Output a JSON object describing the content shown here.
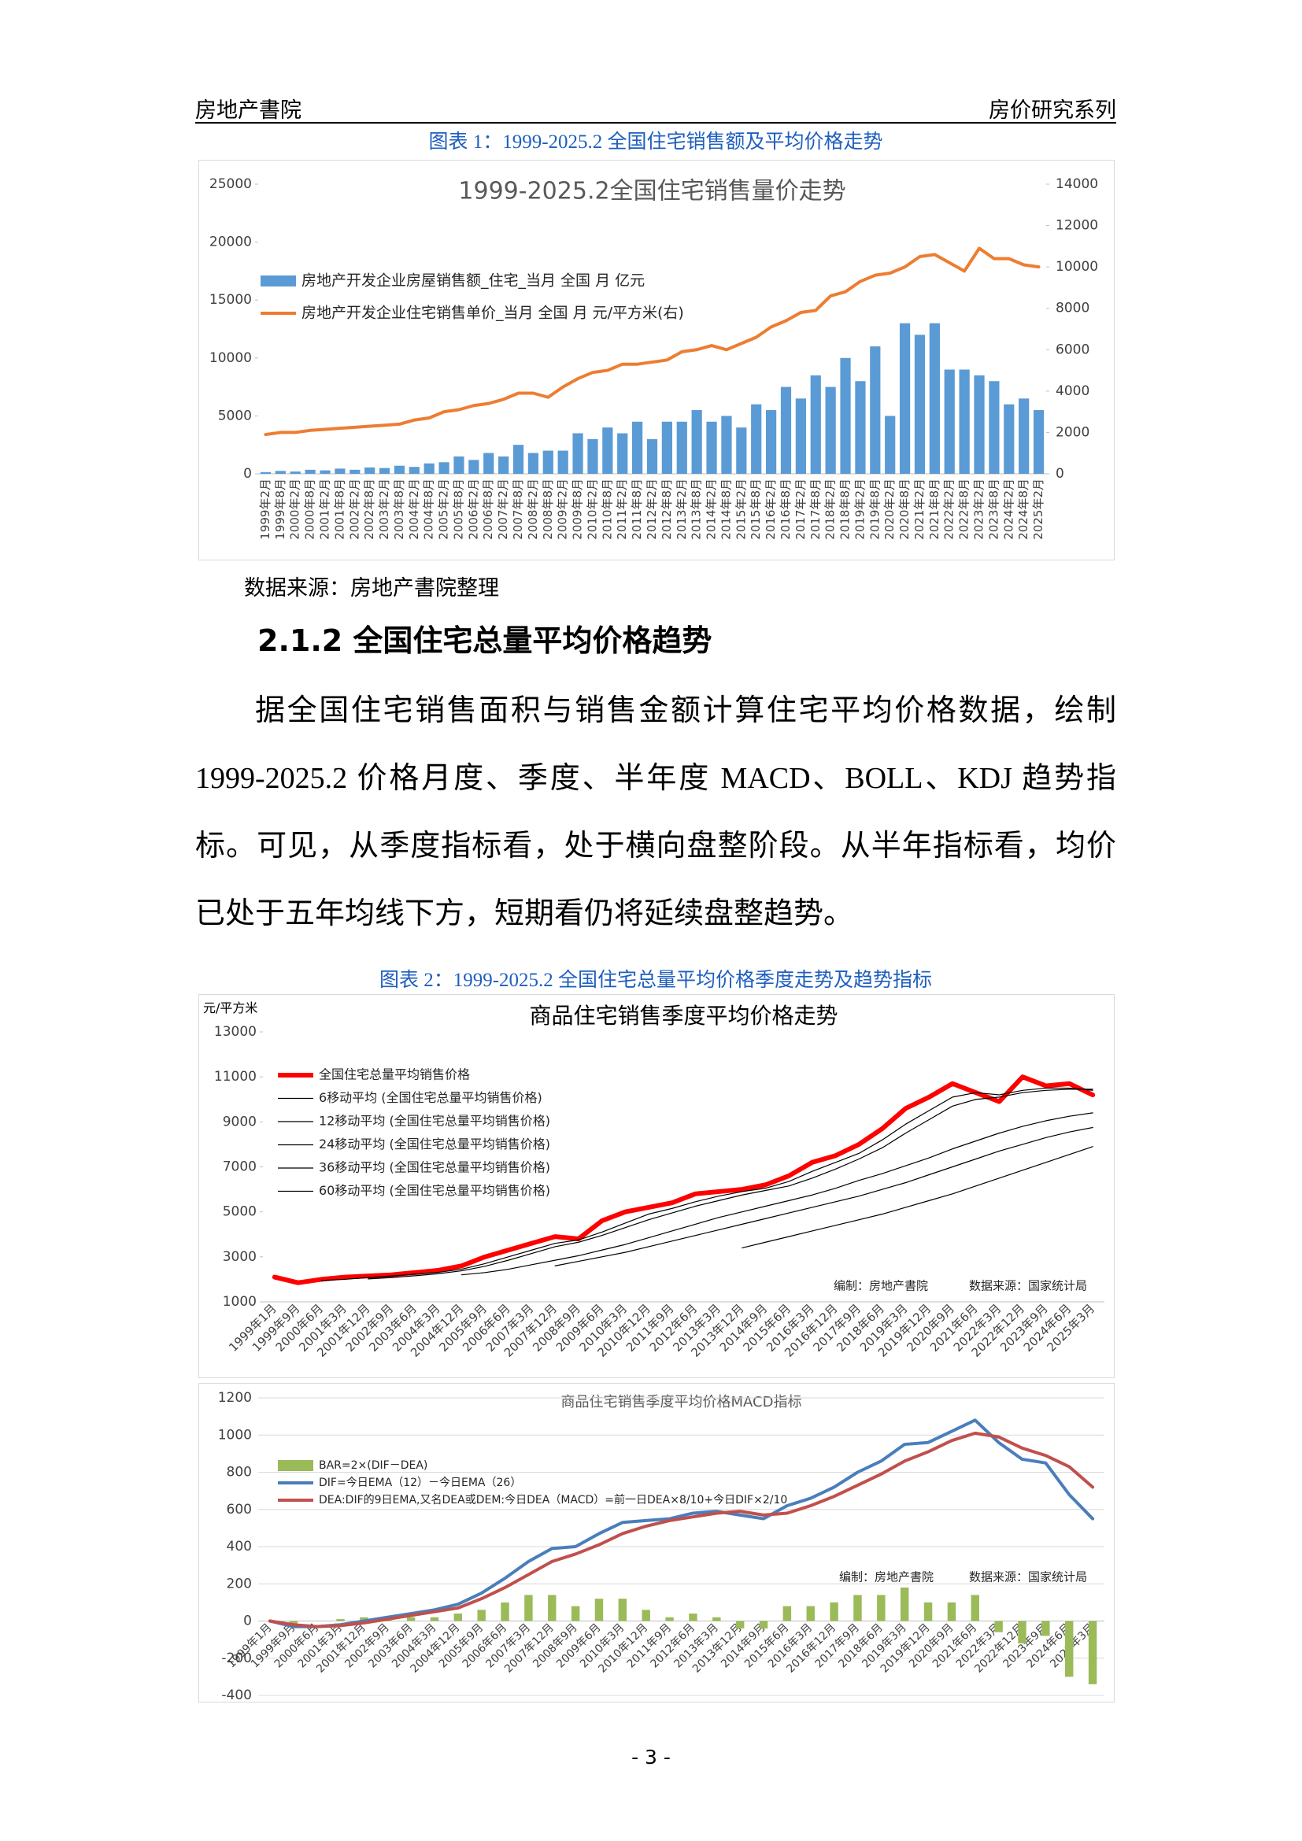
{
  "header": {
    "left": "房地产書院",
    "right": "房价研究系列"
  },
  "captions": [
    "图表 1：1999-2025.2 全国住宅销售额及平均价格走势",
    "图表 2：1999-2025.2 全国住宅总量平均价格季度走势及趋势指标"
  ],
  "source": "数据来源：房地产書院整理",
  "section_heading": "2.1.2 全国住宅总量平均价格趋势",
  "paragraph": "据全国住宅销售面积与销售金额计算住宅平均价格数据，绘制1999-2025.2 价格月度、季度、半年度 MACD、BOLL、KDJ 趋势指标。可见，从季度指标看，处于横向盘整阶段。从半年指标看，均价已处于五年均线下方，短期看仍将延续盘整趋势。",
  "page_number": "- 3 -",
  "chart_data": [
    {
      "type": "bar_line",
      "title": "1999-2025.2全国住宅销售量价走势",
      "categories": [
        "1999年2月",
        "1999年8月",
        "2000年2月",
        "2000年8月",
        "2001年2月",
        "2001年8月",
        "2002年2月",
        "2002年8月",
        "2003年2月",
        "2003年8月",
        "2004年2月",
        "2004年8月",
        "2005年2月",
        "2005年8月",
        "2006年2月",
        "2006年8月",
        "2007年2月",
        "2007年8月",
        "2008年2月",
        "2008年8月",
        "2009年2月",
        "2009年8月",
        "2010年2月",
        "2010年8月",
        "2011年2月",
        "2011年8月",
        "2012年2月",
        "2012年8月",
        "2013年2月",
        "2013年8月",
        "2014年2月",
        "2014年8月",
        "2015年2月",
        "2015年8月",
        "2016年2月",
        "2016年8月",
        "2017年2月",
        "2017年8月",
        "2018年2月",
        "2018年8月",
        "2019年2月",
        "2019年8月",
        "2020年2月",
        "2020年8月",
        "2021年2月",
        "2021年8月",
        "2022年2月",
        "2022年8月",
        "2023年2月",
        "2023年8月",
        "2024年2月",
        "2024年8月",
        "2025年2月"
      ],
      "series": [
        {
          "name": "房地产开发企业房屋销售额_住宅_当月 全国 月 亿元",
          "type": "bar",
          "color": "#5b9bd5",
          "values": [
            150,
            250,
            200,
            350,
            300,
            450,
            350,
            550,
            500,
            700,
            600,
            900,
            1000,
            1500,
            1200,
            1800,
            1500,
            2500,
            1800,
            2000,
            2000,
            3500,
            3000,
            4000,
            3500,
            4500,
            3000,
            4500,
            4500,
            5500,
            4500,
            5000,
            4000,
            6000,
            5500,
            7500,
            6500,
            8500,
            7500,
            10000,
            8000,
            11000,
            5000,
            13000,
            12000,
            13000,
            9000,
            9000,
            8500,
            8000,
            6000,
            6500,
            5500
          ]
        },
        {
          "name": "房地产开发企业住宅销售单价_当月 全国 月 元/平方米(右)",
          "type": "line",
          "axis": "y2",
          "color": "#ed7d31",
          "values": [
            1900,
            2000,
            2000,
            2100,
            2150,
            2200,
            2250,
            2300,
            2350,
            2400,
            2600,
            2700,
            3000,
            3100,
            3300,
            3400,
            3600,
            3900,
            3900,
            3700,
            4200,
            4600,
            4900,
            5000,
            5300,
            5300,
            5400,
            5500,
            5900,
            6000,
            6200,
            6000,
            6300,
            6600,
            7100,
            7400,
            7800,
            7900,
            8600,
            8800,
            9300,
            9600,
            9700,
            10000,
            10500,
            10600,
            10200,
            9800,
            10900,
            10400,
            10400,
            10100,
            10000
          ]
        }
      ],
      "ylim": [
        0,
        25000
      ],
      "yticks": [
        0,
        5000,
        10000,
        15000,
        20000,
        25000
      ],
      "y2lim": [
        0,
        14000
      ],
      "y2ticks": [
        0,
        2000,
        4000,
        6000,
        8000,
        10000,
        12000,
        14000
      ],
      "grid": false,
      "legend": "upper left"
    },
    {
      "type": "line",
      "title": "商品住宅销售季度平均价格走势",
      "ylabel": "元/平方米",
      "categories": [
        "1999年1月",
        "1999年9月",
        "2000年6月",
        "2001年3月",
        "2001年12月",
        "2002年9月",
        "2003年6月",
        "2004年3月",
        "2004年12月",
        "2005年9月",
        "2006年6月",
        "2007年3月",
        "2007年12月",
        "2008年9月",
        "2009年6月",
        "2010年3月",
        "2010年12月",
        "2011年9月",
        "2012年6月",
        "2013年3月",
        "2013年12月",
        "2014年9月",
        "2015年6月",
        "2016年3月",
        "2016年12月",
        "2017年9月",
        "2018年6月",
        "2019年3月",
        "2019年12月",
        "2020年9月",
        "2021年6月",
        "2022年3月",
        "2022年12月",
        "2023年9月",
        "2024年6月",
        "2025年3月"
      ],
      "series": [
        {
          "name": "全国住宅总量平均销售价格",
          "type": "line",
          "color": "#ff0000",
          "values": [
            2100,
            1850,
            2000,
            2100,
            2150,
            2200,
            2300,
            2400,
            2600,
            3000,
            3300,
            3600,
            3900,
            3800,
            4600,
            5000,
            5200,
            5400,
            5800,
            5900,
            6000,
            6200,
            6600,
            7200,
            7500,
            8000,
            8700,
            9600,
            10100,
            10700,
            10300,
            9900,
            11000,
            10600,
            10700,
            10200
          ]
        },
        {
          "name": "6移动平均 (全国住宅总量平均销售价格)",
          "type": "line",
          "color": "#000000",
          "values": [
            null,
            null,
            1950,
            2000,
            2080,
            2150,
            2230,
            2310,
            2450,
            2700,
            3000,
            3300,
            3600,
            3750,
            4100,
            4500,
            4900,
            5150,
            5450,
            5700,
            5900,
            6050,
            6350,
            6800,
            7200,
            7600,
            8200,
            8900,
            9500,
            10100,
            10300,
            10200,
            10400,
            10500,
            10500,
            10400
          ]
        },
        {
          "name": "12移动平均 (全国住宅总量平均销售价格)",
          "type": "line",
          "color": "#000000",
          "values": [
            null,
            null,
            null,
            null,
            2020,
            2080,
            2160,
            2250,
            2380,
            2580,
            2850,
            3150,
            3450,
            3650,
            3950,
            4300,
            4650,
            4950,
            5250,
            5500,
            5750,
            5950,
            6150,
            6500,
            6900,
            7350,
            7850,
            8500,
            9100,
            9700,
            10000,
            10100,
            10300,
            10400,
            10450,
            10450
          ]
        },
        {
          "name": "24移动平均 (全国住宅总量平均销售价格)",
          "type": "line",
          "color": "#000000",
          "values": [
            null,
            null,
            null,
            null,
            null,
            null,
            null,
            null,
            2200,
            2300,
            2450,
            2650,
            2850,
            3050,
            3300,
            3550,
            3850,
            4150,
            4450,
            4750,
            5000,
            5250,
            5500,
            5750,
            6050,
            6400,
            6700,
            7050,
            7400,
            7800,
            8150,
            8500,
            8800,
            9050,
            9250,
            9400
          ]
        },
        {
          "name": "36移动平均 (全国住宅总量平均销售价格)",
          "type": "line",
          "color": "#000000",
          "values": [
            null,
            null,
            null,
            null,
            null,
            null,
            null,
            null,
            null,
            null,
            null,
            null,
            2600,
            2800,
            3000,
            3200,
            3450,
            3700,
            3950,
            4200,
            4450,
            4700,
            4950,
            5200,
            5450,
            5700,
            6000,
            6300,
            6650,
            7000,
            7350,
            7700,
            8000,
            8300,
            8550,
            8750
          ]
        },
        {
          "name": "60移动平均 (全国住宅总量平均销售价格)",
          "type": "line",
          "color": "#000000",
          "values": [
            null,
            null,
            null,
            null,
            null,
            null,
            null,
            null,
            null,
            null,
            null,
            null,
            null,
            null,
            null,
            null,
            null,
            null,
            null,
            null,
            3400,
            3650,
            3900,
            4150,
            4400,
            4650,
            4900,
            5200,
            5500,
            5800,
            6150,
            6500,
            6850,
            7200,
            7550,
            7900
          ]
        }
      ],
      "ylim": [
        1000,
        13000
      ],
      "yticks": [
        1000,
        3000,
        5000,
        7000,
        9000,
        11000,
        13000
      ],
      "grid": false,
      "legend": "upper left",
      "annotations": [
        "编制：房地产書院",
        "数据来源：国家统计局"
      ]
    },
    {
      "type": "bar_line",
      "title": "商品住宅销售季度平均价格MACD指标",
      "categories": [
        "1999年1月",
        "1999年9月",
        "2000年6月",
        "2001年3月",
        "2001年12月",
        "2002年9月",
        "2003年6月",
        "2004年3月",
        "2004年12月",
        "2005年9月",
        "2006年6月",
        "2007年3月",
        "2007年12月",
        "2008年9月",
        "2009年6月",
        "2010年3月",
        "2010年12月",
        "2011年9月",
        "2012年6月",
        "2013年3月",
        "2013年12月",
        "2014年9月",
        "2015年6月",
        "2016年3月",
        "2016年12月",
        "2017年9月",
        "2018年6月",
        "2019年3月",
        "2019年12月",
        "2020年9月",
        "2021年6月",
        "2022年3月",
        "2022年12月",
        "2023年9月",
        "2024年6月",
        "2025年3月"
      ],
      "series": [
        {
          "name": "BAR=2×(DIF－DEA)",
          "type": "bar",
          "color": "#9bbb59",
          "values": [
            0,
            -20,
            0,
            10,
            20,
            20,
            20,
            20,
            40,
            60,
            100,
            140,
            140,
            80,
            120,
            120,
            60,
            20,
            40,
            20,
            -40,
            -40,
            80,
            80,
            100,
            140,
            140,
            180,
            100,
            100,
            140,
            -60,
            -120,
            -80,
            -300,
            -340
          ]
        },
        {
          "name": "DIF=今日EMA（12）－今日EMA（26）",
          "type": "line",
          "color": "#4a7ebb",
          "values": [
            0,
            -30,
            -30,
            -20,
            0,
            20,
            40,
            60,
            90,
            150,
            230,
            320,
            390,
            400,
            470,
            530,
            540,
            550,
            580,
            590,
            570,
            550,
            620,
            660,
            720,
            800,
            860,
            950,
            960,
            1020,
            1080,
            960,
            870,
            850,
            680,
            550
          ]
        },
        {
          "name": "DEA:DIF的9日EMA,又名DEA或DEM:今日DEA（MACD）=前一日DEA×8/10+今日DIF×2/10",
          "type": "line",
          "color": "#c0504d",
          "values": [
            0,
            -20,
            -30,
            -25,
            -10,
            10,
            30,
            50,
            70,
            120,
            180,
            250,
            320,
            360,
            410,
            470,
            510,
            540,
            560,
            580,
            590,
            570,
            580,
            620,
            670,
            730,
            790,
            860,
            910,
            970,
            1010,
            990,
            930,
            890,
            830,
            720
          ]
        }
      ],
      "ylim": [
        -400,
        1200
      ],
      "yticks": [
        -400,
        -200,
        0,
        200,
        400,
        600,
        800,
        1000,
        1200
      ],
      "grid": true,
      "legend": "upper left",
      "annotations": [
        "编制：房地产書院",
        "数据来源：国家统计局"
      ]
    }
  ]
}
